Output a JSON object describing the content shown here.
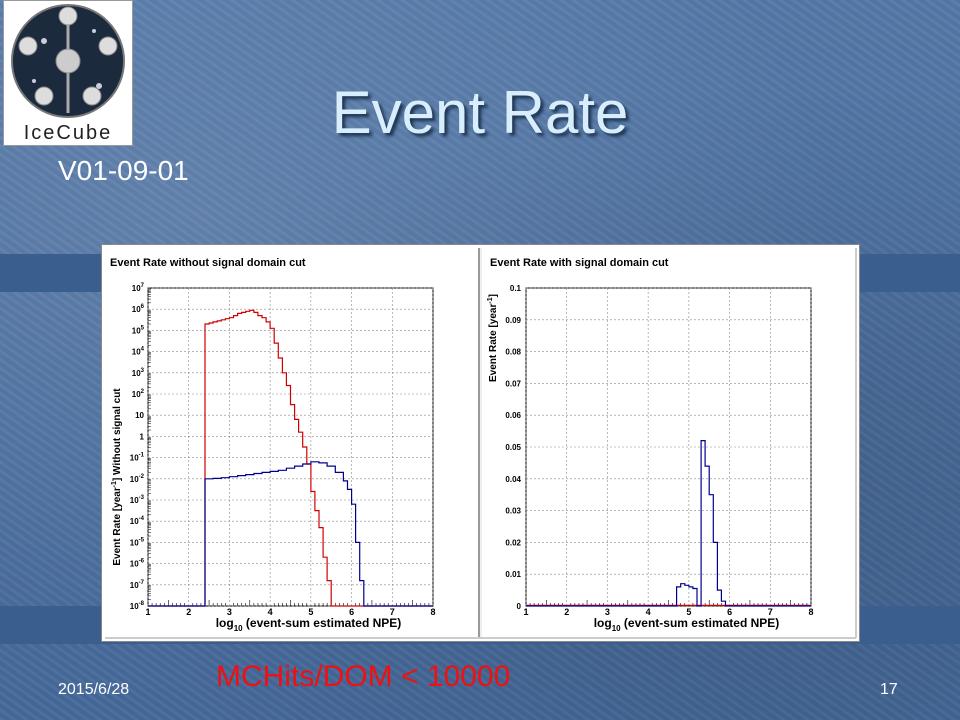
{
  "slide": {
    "title": "Event Rate",
    "version": "V01-09-01",
    "date": "2015/6/28",
    "page_number": "17",
    "note": "MCHits/DOM < 10000"
  },
  "logo": {
    "text": "IceCube"
  },
  "colors": {
    "red": "#d00000",
    "blue": "#000090",
    "title": "#d8eefd",
    "note": "#ee1111"
  },
  "chart_data": [
    {
      "type": "line",
      "title": "Event Rate without signal domain cut",
      "xlabel_prefix": "log",
      "xlabel_sub": "10",
      "xlabel_rest": " (event-sum estimated NPE)",
      "ylabel_pre": "Event Rate [year",
      "ylabel_sup": "-1",
      "ylabel_post": "] Without signal cut",
      "yscale": "log",
      "xlim": [
        1,
        8
      ],
      "ylim_exp": [
        -8,
        7
      ],
      "x_ticks": [
        "1",
        "2",
        "3",
        "4",
        "5",
        "6",
        "7",
        "8"
      ],
      "y_tick_base": "10",
      "y_ticks": [
        {
          "exp": -8,
          "base": "10",
          "sup": "-8"
        },
        {
          "exp": -7,
          "base": "10",
          "sup": "-7"
        },
        {
          "exp": -6,
          "base": "10",
          "sup": "-6"
        },
        {
          "exp": -5,
          "base": "10",
          "sup": "-5"
        },
        {
          "exp": -4,
          "base": "10",
          "sup": "-4"
        },
        {
          "exp": -3,
          "base": "10",
          "sup": "-3"
        },
        {
          "exp": -2,
          "base": "10",
          "sup": "-2"
        },
        {
          "exp": -1,
          "base": "10",
          "sup": "-1"
        },
        {
          "exp": 0,
          "base": "1",
          "sup": ""
        },
        {
          "exp": 1,
          "base": "10",
          "sup": ""
        },
        {
          "exp": 2,
          "base": "10",
          "sup": "2"
        },
        {
          "exp": 3,
          "base": "10",
          "sup": "3"
        },
        {
          "exp": 4,
          "base": "10",
          "sup": "4"
        },
        {
          "exp": 5,
          "base": "10",
          "sup": "5"
        },
        {
          "exp": 6,
          "base": "10",
          "sup": "6"
        },
        {
          "exp": 7,
          "base": "10",
          "sup": "7"
        }
      ],
      "grid": true,
      "series": [
        {
          "color": "#d00000",
          "points": [
            [
              1.0,
              -8
            ],
            [
              2.4,
              -8
            ],
            [
              2.4,
              5.3
            ],
            [
              2.5,
              5.35
            ],
            [
              2.6,
              5.4
            ],
            [
              2.7,
              5.45
            ],
            [
              2.8,
              5.5
            ],
            [
              2.9,
              5.55
            ],
            [
              3.0,
              5.6
            ],
            [
              3.1,
              5.7
            ],
            [
              3.2,
              5.8
            ],
            [
              3.3,
              5.85
            ],
            [
              3.4,
              5.9
            ],
            [
              3.5,
              5.95
            ],
            [
              3.6,
              5.85
            ],
            [
              3.7,
              5.7
            ],
            [
              3.8,
              5.6
            ],
            [
              3.9,
              5.4
            ],
            [
              4.0,
              5.1
            ],
            [
              4.1,
              4.4
            ],
            [
              4.2,
              3.7
            ],
            [
              4.3,
              3.0
            ],
            [
              4.4,
              2.4
            ],
            [
              4.5,
              1.5
            ],
            [
              4.6,
              0.8
            ],
            [
              4.7,
              0.2
            ],
            [
              4.8,
              -0.5
            ],
            [
              4.9,
              -1.3
            ],
            [
              5.0,
              -2.6
            ],
            [
              5.1,
              -3.5
            ],
            [
              5.2,
              -4.3
            ],
            [
              5.3,
              -5.7
            ],
            [
              5.4,
              -6.8
            ],
            [
              5.5,
              -8
            ],
            [
              8.0,
              -8
            ]
          ]
        },
        {
          "color": "#000090",
          "points": [
            [
              1.0,
              -8
            ],
            [
              2.4,
              -8
            ],
            [
              2.4,
              -2.0
            ],
            [
              2.6,
              -1.98
            ],
            [
              2.8,
              -1.95
            ],
            [
              3.0,
              -1.9
            ],
            [
              3.2,
              -1.85
            ],
            [
              3.4,
              -1.8
            ],
            [
              3.6,
              -1.75
            ],
            [
              3.8,
              -1.7
            ],
            [
              4.0,
              -1.65
            ],
            [
              4.2,
              -1.6
            ],
            [
              4.4,
              -1.5
            ],
            [
              4.6,
              -1.4
            ],
            [
              4.8,
              -1.3
            ],
            [
              5.0,
              -1.2
            ],
            [
              5.2,
              -1.25
            ],
            [
              5.4,
              -1.4
            ],
            [
              5.6,
              -1.7
            ],
            [
              5.8,
              -2.1
            ],
            [
              5.9,
              -2.5
            ],
            [
              6.0,
              -3.2
            ],
            [
              6.1,
              -5.0
            ],
            [
              6.2,
              -6.8
            ],
            [
              6.3,
              -8
            ],
            [
              8.0,
              -8
            ]
          ]
        }
      ]
    },
    {
      "type": "line",
      "title": "Event Rate with signal domain cut",
      "xlabel_prefix": "log",
      "xlabel_sub": "10",
      "xlabel_rest": " (event-sum estimated NPE)",
      "ylabel_pre": "Event Rate [year",
      "ylabel_sup": "-1",
      "ylabel_post": "]",
      "yscale": "linear",
      "xlim": [
        1,
        8
      ],
      "ylim": [
        0,
        0.1
      ],
      "x_ticks": [
        "1",
        "2",
        "3",
        "4",
        "5",
        "6",
        "7",
        "8"
      ],
      "y_ticks": [
        "0",
        "0.01",
        "0.02",
        "0.03",
        "0.04",
        "0.05",
        "0.06",
        "0.07",
        "0.08",
        "0.09",
        "0.1"
      ],
      "grid": true,
      "series": [
        {
          "color": "#d00000",
          "points": [
            [
              1.0,
              0.0002
            ],
            [
              8.0,
              0.0002
            ]
          ]
        },
        {
          "color": "#000090",
          "points": [
            [
              1.0,
              0
            ],
            [
              4.7,
              0
            ],
            [
              4.7,
              0.006
            ],
            [
              4.8,
              0.007
            ],
            [
              4.9,
              0.0065
            ],
            [
              5.0,
              0.006
            ],
            [
              5.1,
              0.0055
            ],
            [
              5.2,
              0
            ],
            [
              5.3,
              0
            ],
            [
              5.3,
              0.052
            ],
            [
              5.4,
              0.044
            ],
            [
              5.5,
              0.035
            ],
            [
              5.6,
              0.02
            ],
            [
              5.7,
              0.005
            ],
            [
              5.8,
              0.0015
            ],
            [
              5.9,
              0
            ],
            [
              8.0,
              0
            ]
          ]
        }
      ]
    }
  ]
}
